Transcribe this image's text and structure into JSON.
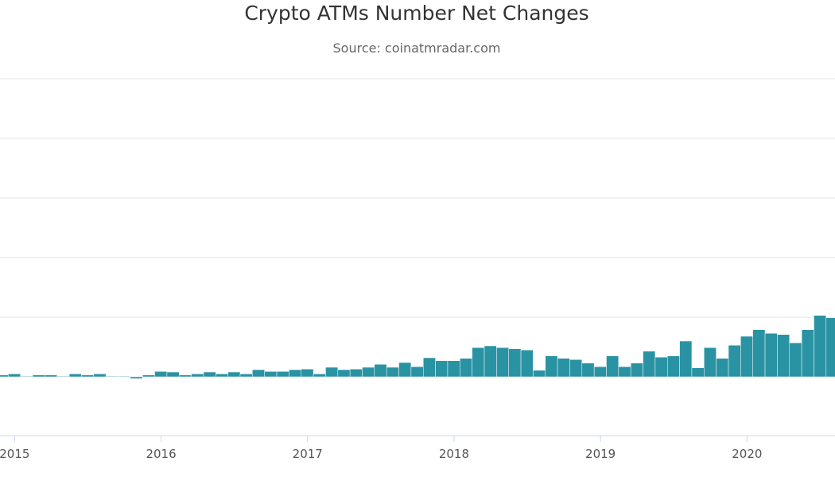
{
  "chart_data": {
    "type": "bar",
    "title": "Crypto ATMs Number Net Changes",
    "subtitle": "Source: coinatmradar.com",
    "xlabel": "",
    "ylabel": "",
    "y_units_note_visible": false,
    "ylim": [
      -1,
      5
    ],
    "grid": true,
    "color": "#2a93a3",
    "x_tick_labels": [
      "2015",
      "2016",
      "2017",
      "2018",
      "2019",
      "2020"
    ],
    "categories": [
      "2014-12",
      "2015-01",
      "2015-02",
      "2015-03",
      "2015-04",
      "2015-05",
      "2015-06",
      "2015-07",
      "2015-08",
      "2015-09",
      "2015-10",
      "2015-11",
      "2015-12",
      "2016-01",
      "2016-02",
      "2016-03",
      "2016-04",
      "2016-05",
      "2016-06",
      "2016-07",
      "2016-08",
      "2016-09",
      "2016-10",
      "2016-11",
      "2016-12",
      "2017-01",
      "2017-02",
      "2017-03",
      "2017-04",
      "2017-05",
      "2017-06",
      "2017-07",
      "2017-08",
      "2017-09",
      "2017-10",
      "2017-11",
      "2017-12",
      "2018-01",
      "2018-02",
      "2018-03",
      "2018-04",
      "2018-05",
      "2018-06",
      "2018-07",
      "2018-08",
      "2018-09",
      "2018-10",
      "2018-11",
      "2018-12",
      "2019-01",
      "2019-02",
      "2019-03",
      "2019-04",
      "2019-05",
      "2019-06",
      "2019-07",
      "2019-08",
      "2019-09",
      "2019-10",
      "2019-11",
      "2019-12",
      "2020-01",
      "2020-02",
      "2020-03",
      "2020-04",
      "2020-05",
      "2020-06",
      "2020-07",
      "2020-08"
    ],
    "values": [
      0.03,
      0.05,
      0.01,
      0.03,
      0.03,
      0.01,
      0.05,
      0.03,
      0.05,
      0.01,
      0.01,
      -0.03,
      0.03,
      0.09,
      0.08,
      0.03,
      0.05,
      0.08,
      0.05,
      0.08,
      0.05,
      0.12,
      0.09,
      0.09,
      0.12,
      0.13,
      0.05,
      0.16,
      0.12,
      0.13,
      0.16,
      0.21,
      0.16,
      0.24,
      0.17,
      0.32,
      0.27,
      0.27,
      0.31,
      0.49,
      0.52,
      0.49,
      0.47,
      0.45,
      0.11,
      0.35,
      0.31,
      0.29,
      0.23,
      0.17,
      0.35,
      0.17,
      0.23,
      0.43,
      0.33,
      0.35,
      0.6,
      0.15,
      0.49,
      0.31,
      0.53,
      0.68,
      0.79,
      0.73,
      0.71,
      0.57,
      0.79,
      1.03,
      0.99
    ]
  }
}
